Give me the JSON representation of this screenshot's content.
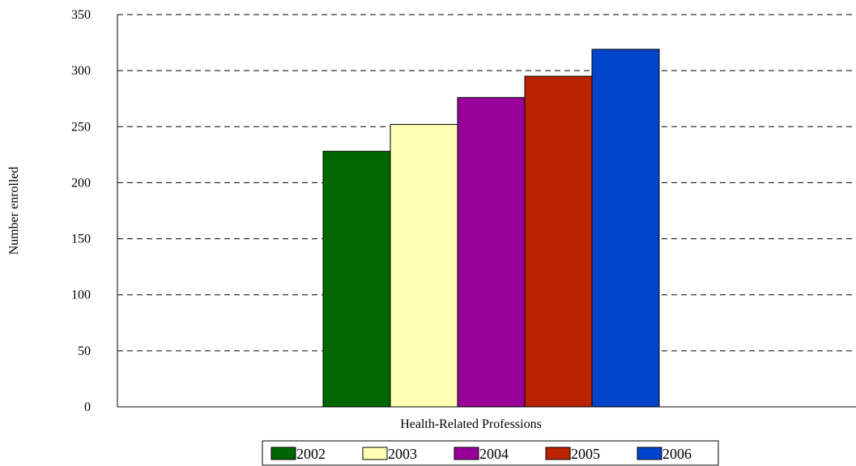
{
  "chart_data": {
    "type": "bar",
    "categories": [
      "Health-Related Professions"
    ],
    "series": [
      {
        "name": "2002",
        "values": [
          228
        ],
        "color": "#006600"
      },
      {
        "name": "2003",
        "values": [
          252
        ],
        "color": "#FFFFB3"
      },
      {
        "name": "2004",
        "values": [
          276
        ],
        "color": "#990099"
      },
      {
        "name": "2005",
        "values": [
          295
        ],
        "color": "#BB2200"
      },
      {
        "name": "2006",
        "values": [
          319
        ],
        "color": "#0044CC"
      }
    ],
    "title": "",
    "xlabel": "",
    "ylabel": "Number enrolled",
    "ylim": [
      0,
      350
    ],
    "yticks": [
      0,
      50,
      100,
      150,
      200,
      250,
      300,
      350
    ],
    "grid": "horizontal-dashed",
    "legend": "bottom"
  }
}
